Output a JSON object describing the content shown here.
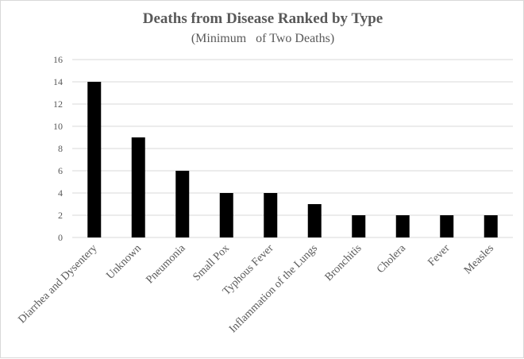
{
  "chart_data": {
    "type": "bar",
    "title": "Deaths from Disease Ranked by Type",
    "subtitle": "(Minimum   of Two Deaths)",
    "xlabel": "",
    "ylabel": "",
    "categories": [
      "Diarrhea and Dysentery",
      "Unknown",
      "Pneumonia",
      "Small Pox",
      "Typhous Fever",
      "Inflammation of the Lungs",
      "Bronchitis",
      "Cholera",
      "Fever",
      "Measles"
    ],
    "values": [
      14,
      9,
      6,
      4,
      4,
      3,
      2,
      2,
      2,
      2
    ],
    "ylim": [
      0,
      16
    ],
    "yticks": [
      0,
      2,
      4,
      6,
      8,
      10,
      12,
      14,
      16
    ],
    "grid": true,
    "legend": "none",
    "colors": {
      "bar": "#000000",
      "grid": "#d9d9d9",
      "text": "#595959"
    }
  }
}
